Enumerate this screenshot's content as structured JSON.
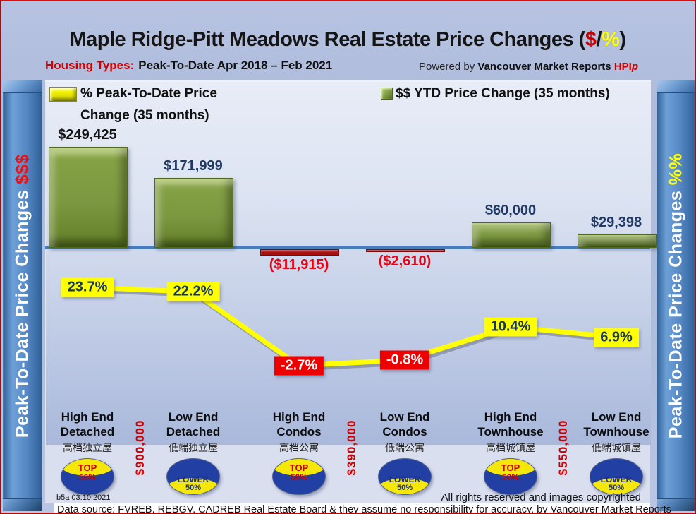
{
  "header": {
    "title_prefix": "Maple Ridge-Pitt Meadows Real Estate Price Changes (",
    "title_dollar": "$",
    "title_slash": "/",
    "title_percent": "%",
    "title_suffix": ")",
    "subtitle_label": "Housing Types:",
    "subtitle_text": "Peak-To-Date Apr 2018 – Feb 2021",
    "powered_prefix": "Powered by ",
    "powered_brand": "Vancouver Market Reports",
    "powered_hpi": "HPI",
    "powered_hpi_p": "p"
  },
  "sidebar_left": {
    "text": "Peak-To-Date Price Changes ",
    "suffix": "$$$"
  },
  "sidebar_right": {
    "text": "Peak-To-Date Price Changes ",
    "suffix": "%%"
  },
  "legend": {
    "pct_line1": "% Peak-To-Date Price",
    "pct_line2": "Change (35 months)",
    "usd": "$$ YTD Price Change (35 months)"
  },
  "chart_data": {
    "type": "combo",
    "categories": [
      "High End Detached",
      "Low End Detached",
      "High End Condos",
      "Low End Condos",
      "High End Townhouse",
      "Low End Townhouse"
    ],
    "groups": [
      {
        "line1": "High End",
        "line2": "Detached",
        "chinese": "高档独立屋",
        "badge_type": "top50",
        "badge_line1": "TOP",
        "badge_line2": "50%"
      },
      {
        "line1": "Low End",
        "line2": "Detached",
        "chinese": "低端独立屋",
        "badge_type": "lower50",
        "badge_line1": "LOWER",
        "badge_line2": "50%"
      },
      {
        "line1": "High End",
        "line2": "Condos",
        "chinese": "高档公寓",
        "badge_type": "top50",
        "badge_line1": "TOP",
        "badge_line2": "50%"
      },
      {
        "line1": "Low End",
        "line2": "Condos",
        "chinese": "低端公寓",
        "badge_type": "lower50",
        "badge_line1": "LOWER",
        "badge_line2": "50%"
      },
      {
        "line1": "High End",
        "line2": "Townhouse",
        "chinese": "高档城镇屋",
        "badge_type": "top50",
        "badge_line1": "TOP",
        "badge_line2": "50%"
      },
      {
        "line1": "Low End",
        "line2": "Townhouse",
        "chinese": "低端城镇屋",
        "badge_type": "lower50",
        "badge_line1": "LOWER",
        "badge_line2": "50%"
      }
    ],
    "series": [
      {
        "name": "$$ YTD Price Change (35 months)",
        "type": "bar",
        "values": [
          249425,
          171999,
          -11915,
          -2610,
          60000,
          29398
        ],
        "labels": [
          "$249,425",
          "$171,999",
          "($11,915)",
          "($2,610)",
          "$60,000",
          "$29,398"
        ]
      },
      {
        "name": "% Peak-To-Date Price Change (35 months)",
        "type": "line",
        "values": [
          23.7,
          22.2,
          -2.7,
          -0.8,
          10.4,
          6.9
        ],
        "labels": [
          "23.7%",
          "22.2%",
          "-2.7%",
          "-0.8%",
          "10.4%",
          "6.9%"
        ]
      }
    ],
    "benchmark_prices": [
      "$900,000",
      "$390,000",
      "$550,000"
    ],
    "baseline_value": 0,
    "legend_position": "top",
    "grid": false,
    "colors": {
      "bar_positive": "#7c9840",
      "bar_negative": "#a90e0e",
      "line": "#ffff00",
      "axis": "#4b7cba",
      "pct_pos_bg": "#ffff00",
      "pct_pos_text": "#17365d",
      "pct_neg_bg": "#ee0000",
      "pct_neg_text": "#ffffff",
      "usd_first_text": "#141414",
      "usd_pos_text": "#1f3864",
      "usd_neg_text": "#ee0011"
    }
  },
  "footer": {
    "version": "b5a 03.10.2021",
    "rights": "All rights reserved and  images copyrighted",
    "source": "Data source: FVREB, REBGV, CADREB Real Estate Board & they assume no responsibility for accuracy. by Vancouver Market Reports"
  }
}
